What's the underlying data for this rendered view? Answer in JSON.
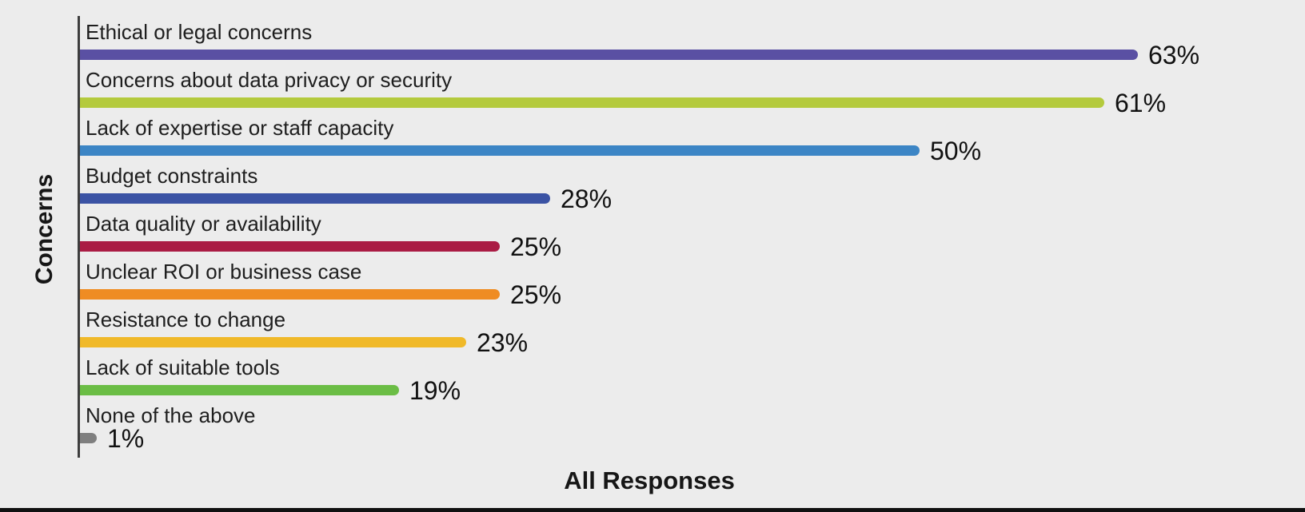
{
  "chart_data": {
    "type": "bar",
    "orientation": "horizontal",
    "xlabel": "All Responses",
    "ylabel": "Concerns",
    "xlim": [
      0,
      72
    ],
    "grid": false,
    "legend": false,
    "categories": [
      "Ethical or legal concerns",
      "Concerns about data privacy or security",
      "Lack of expertise or staff capacity",
      "Budget constraints",
      "Data quality or availability",
      "Unclear ROI or business case",
      "Resistance to change",
      "Lack of suitable tools",
      "None of the above"
    ],
    "values": [
      63,
      61,
      50,
      28,
      25,
      25,
      23,
      19,
      1
    ],
    "value_labels": [
      "63%",
      "61%",
      "50%",
      "28%",
      "25%",
      "25%",
      "23%",
      "19%",
      "1%"
    ],
    "bar_colors": [
      "#5a50a3",
      "#b4ca3d",
      "#3c85c5",
      "#3b53a4",
      "#aa1c44",
      "#ef8c23",
      "#f0b929",
      "#6bbd45",
      "#7f7f7f"
    ]
  },
  "style": {
    "background": "#ececec",
    "axis_line_color": "#3d3d3d",
    "label_color": "#1e1e1e",
    "value_color": "#111111",
    "bottom_rule_color": "#101010"
  }
}
